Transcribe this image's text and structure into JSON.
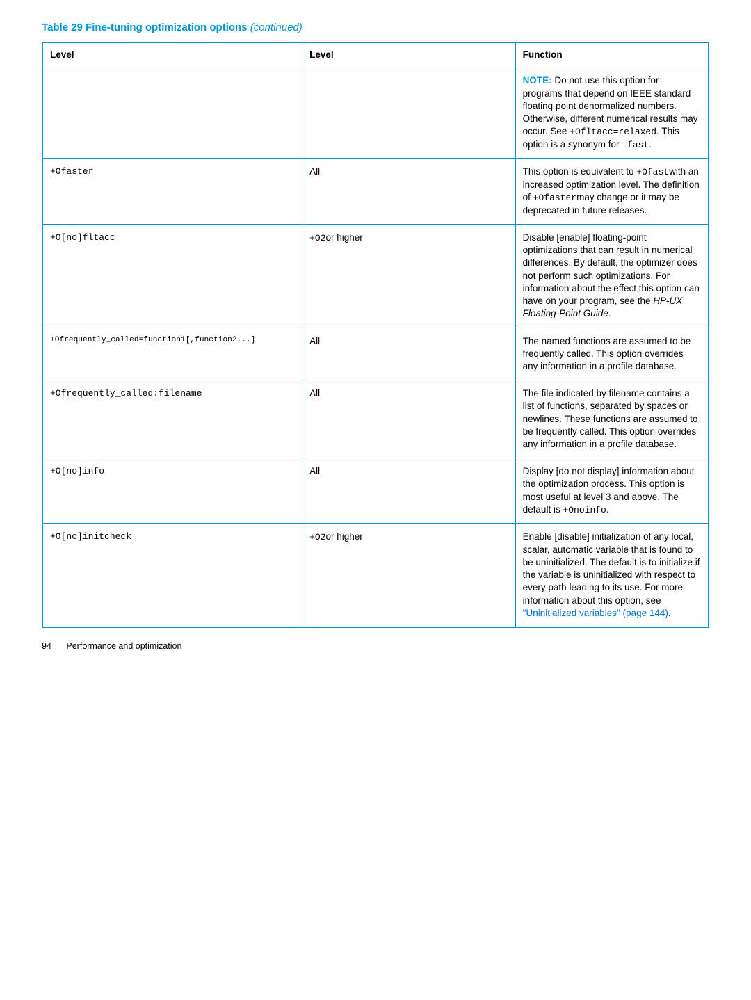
{
  "title_prefix": "Table 29 Fine-tuning optimization options ",
  "title_suffix": "(continued)",
  "headers": {
    "c1": "Level",
    "c2": "Level",
    "c3": "Function"
  },
  "rows": {
    "r0": {
      "c1": "",
      "c2": "",
      "note_label": "NOTE:",
      "note_pre": "   Do not use this option for programs that depend on IEEE standard floating point denormalized numbers. Otherwise, different numerical results may occur. See ",
      "note_code": "+Ofltacc=relaxed",
      "note_mid": ". This option is a synonym for ",
      "note_code2": "-fast",
      "note_end": "."
    },
    "r1": {
      "c1": "+Ofaster",
      "c2": "All",
      "t1": "This option is equivalent to ",
      "code1": "+Ofast",
      "t2": "with an increased optimization level. The definition of ",
      "code2": "+Ofaster",
      "t3": "may change or it may be deprecated in future releases."
    },
    "r2": {
      "c1": "+O[no]fltacc",
      "c2_code": "+O2",
      "c2_txt": "or higher",
      "t1": "Disable [enable] floating-point optimizations that can result in numerical differences. By default, the optimizer does not perform such optimizations. For information about the effect this option can have on your program, see the ",
      "ital": "HP-UX Floating-Point Guide",
      "t2": "."
    },
    "r3": {
      "c1": "+Ofrequently_called=function1[,function2...]",
      "c2": "All",
      "t1": "The named functions are assumed to be frequently called. This option overrides any information in a profile database."
    },
    "r4": {
      "c1": "+Ofrequently_called:filename",
      "c2": "All",
      "t1": "The file indicated by filename contains a list of functions, separated by spaces or newlines. These functions are assumed to be frequently called. This option overrides any information in a profile database."
    },
    "r5": {
      "c1": "+O[no]info",
      "c2": "All",
      "t1": "Display [do not display] information about the optimization process. This option is most useful at level 3 and above. The default is ",
      "code1": "+Onoinfo",
      "t2": "."
    },
    "r6": {
      "c1": "+O[no]initcheck",
      "c2_code": "+O2",
      "c2_txt": "or higher",
      "t1": "Enable [disable] initialization of any local, scalar, automatic variable that is found to be uninitialized. The default is to initialize if the variable is uninitialized with respect to every path leading to its use. For more information about this option, see ",
      "link1": "\"Uninitialized variables\" (page 144)",
      "t2": "."
    }
  },
  "footer": {
    "page": "94",
    "section": "Performance and optimization"
  }
}
